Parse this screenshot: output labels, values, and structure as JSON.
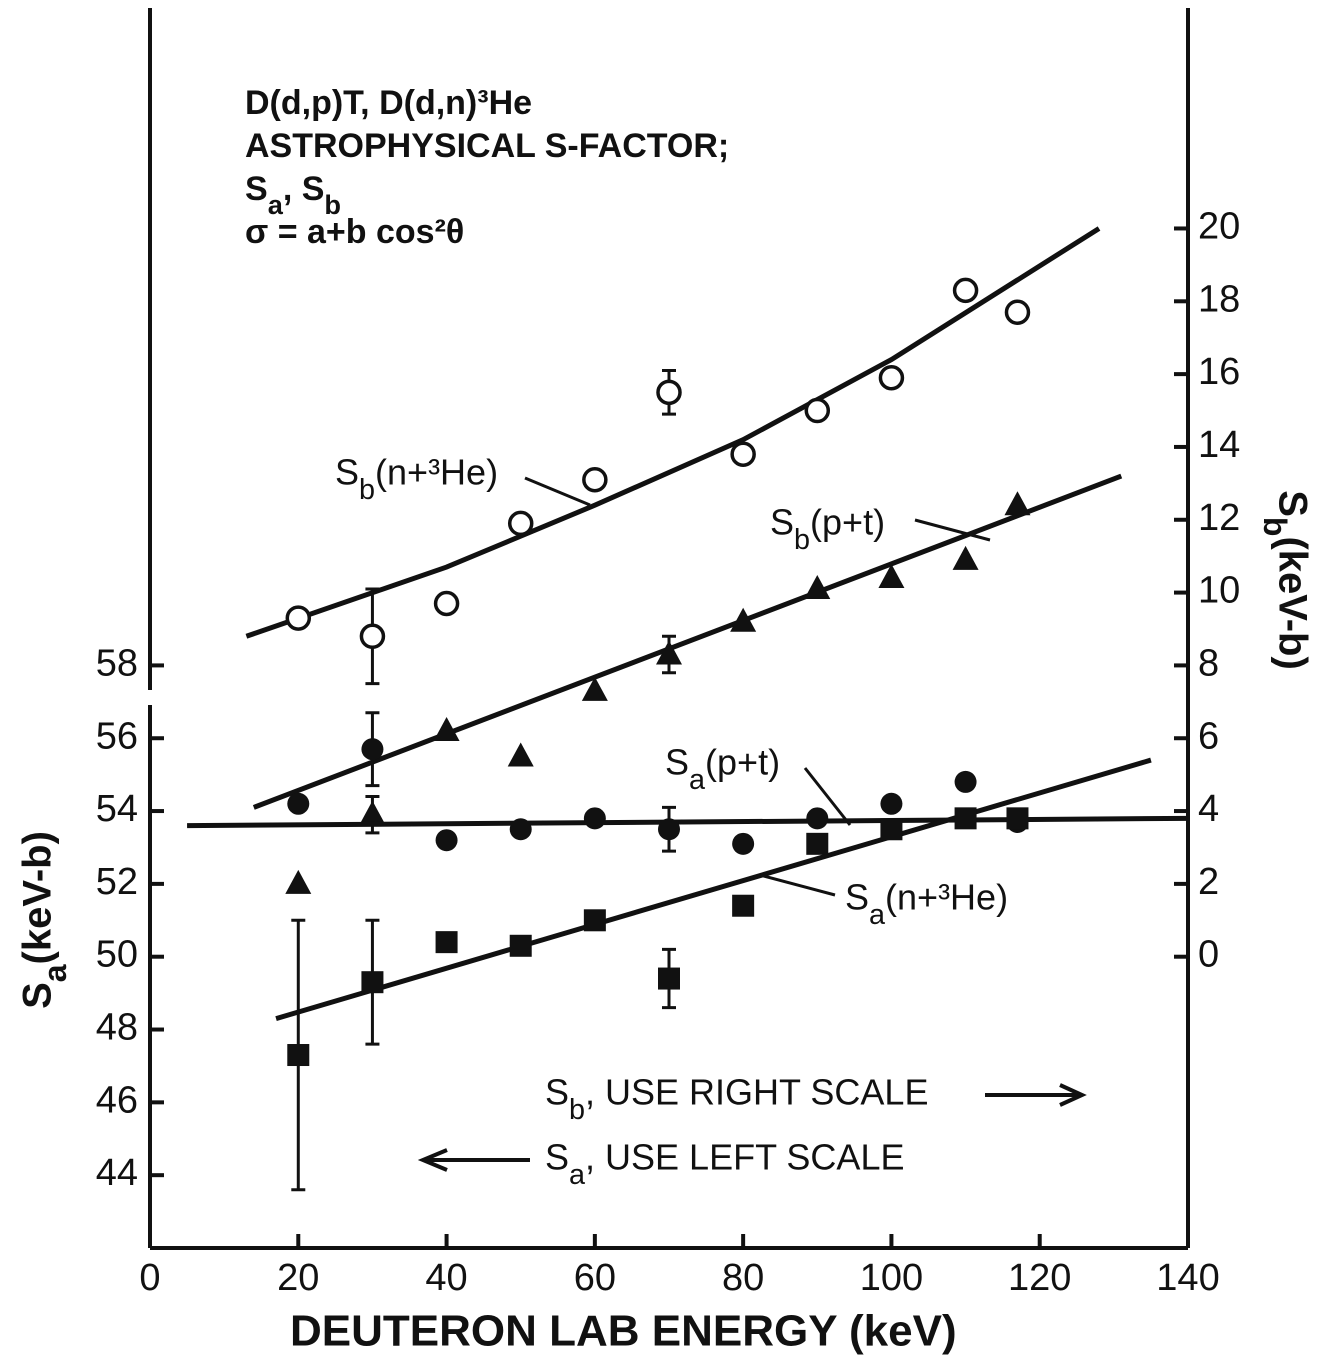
{
  "chart_data": {
    "type": "scatter",
    "annotations": [
      "D(d,p)T,  D(d,n)³He",
      "ASTROPHYSICAL S-FACTOR;",
      "Sa, Sb",
      "σ = a+b cos²θ"
    ],
    "notes": [
      "Sb, USE RIGHT SCALE",
      "Sa, USE LEFT SCALE"
    ],
    "xlabel": "DEUTERON LAB ENERGY (keV)",
    "ylabel": "Sa(keV-b)",
    "y2label": "Sb(keV-b)",
    "xlim": [
      0,
      140
    ],
    "xticks": [
      0,
      20,
      40,
      60,
      80,
      100,
      120,
      140
    ],
    "ylim": [
      42,
      76
    ],
    "yticks": [
      44,
      46,
      48,
      50,
      52,
      54,
      56,
      58
    ],
    "y2lim": [
      -8,
      26
    ],
    "y2ticks": [
      0,
      2,
      4,
      6,
      8,
      10,
      12,
      14,
      16,
      18,
      20
    ],
    "x": [
      20,
      30,
      40,
      50,
      60,
      70,
      80,
      90,
      100,
      110,
      117
    ],
    "series": [
      {
        "name": "Sb(n+³He)",
        "axis": "y2",
        "marker": "open-circle",
        "color": "#111111",
        "values": [
          9.3,
          8.8,
          9.7,
          11.9,
          13.1,
          15.5,
          13.8,
          15.0,
          15.9,
          18.3,
          17.7
        ],
        "errors": [
          null,
          1.3,
          null,
          null,
          null,
          0.6,
          null,
          null,
          null,
          null,
          null
        ],
        "fit_x": [
          13,
          40,
          60,
          80,
          100,
          128
        ],
        "fit_values": [
          8.8,
          10.7,
          12.4,
          14.2,
          16.4,
          20.0
        ]
      },
      {
        "name": "Sb(p+t)",
        "axis": "y2",
        "marker": "triangle",
        "color": "#111111",
        "values": [
          2.0,
          3.9,
          6.2,
          5.5,
          7.3,
          8.3,
          9.2,
          10.1,
          10.4,
          10.9,
          12.4
        ],
        "errors": [
          null,
          0.5,
          null,
          null,
          null,
          0.5,
          null,
          null,
          null,
          null,
          null
        ],
        "fit_x": [
          14,
          131
        ],
        "fit_values": [
          4.1,
          13.2
        ]
      },
      {
        "name": "Sa(p+t)",
        "axis": "y",
        "marker": "circle",
        "color": "#111111",
        "values": [
          54.2,
          55.7,
          53.2,
          53.5,
          53.8,
          53.5,
          53.1,
          53.8,
          54.2,
          54.8,
          53.7
        ],
        "errors": [
          null,
          1.0,
          null,
          null,
          null,
          0.6,
          null,
          null,
          null,
          null,
          null
        ],
        "fit_x": [
          5,
          140
        ],
        "fit_values": [
          53.6,
          53.8
        ]
      },
      {
        "name": "Sa(n+³He)",
        "axis": "y",
        "marker": "square",
        "color": "#111111",
        "values": [
          47.3,
          49.3,
          50.4,
          50.3,
          51.0,
          49.4,
          51.4,
          53.1,
          53.5,
          53.8,
          53.8
        ],
        "errors": [
          3.7,
          1.7,
          null,
          null,
          null,
          0.8,
          null,
          null,
          null,
          null,
          null
        ],
        "fit_x": [
          17,
          135
        ],
        "fit_values": [
          48.3,
          55.4
        ]
      }
    ]
  }
}
